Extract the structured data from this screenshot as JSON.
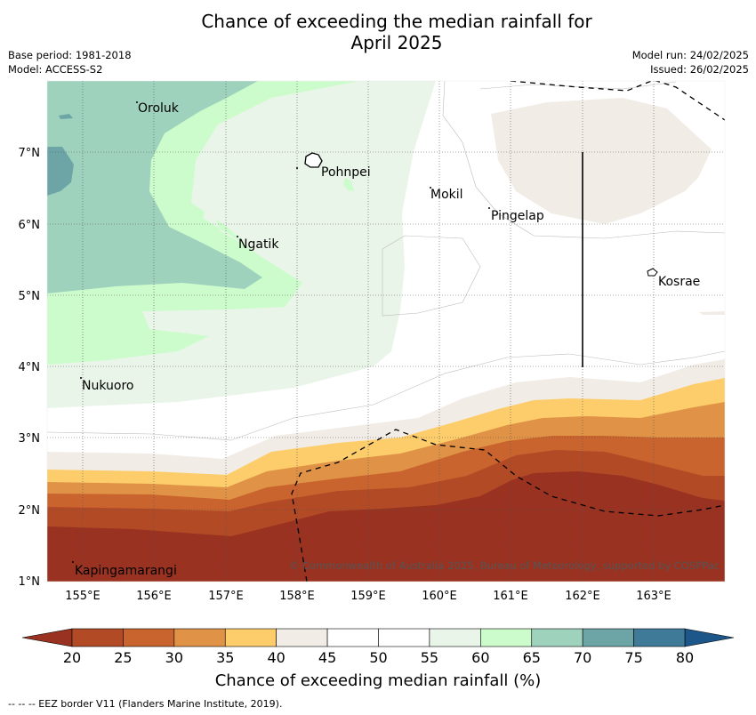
{
  "title_line1": "Chance of exceeding the median rainfall for",
  "title_line2": "April 2025",
  "meta": {
    "base_period": "Base period: 1981-2018",
    "model": "Model: ACCESS-S2",
    "model_run": "Model run: 24/02/2025",
    "issued": "Issued: 26/02/2025"
  },
  "axes": {
    "x_ticks": [
      "155°E",
      "156°E",
      "157°E",
      "158°E",
      "159°E",
      "160°E",
      "161°E",
      "162°E",
      "163°E"
    ],
    "y_ticks": [
      "7°N",
      "6°N",
      "5°N",
      "4°N",
      "3°N",
      "2°N",
      "1°N"
    ]
  },
  "places": [
    {
      "name": "Oroluk"
    },
    {
      "name": "Pohnpei"
    },
    {
      "name": "Mokil"
    },
    {
      "name": "Pingelap"
    },
    {
      "name": "Ngatik"
    },
    {
      "name": "Kosrae"
    },
    {
      "name": "Nukuoro"
    },
    {
      "name": "Kapingamarangi"
    }
  ],
  "copyright": "© Commonwealth of Australia 2025, Bureau of Meteorology, supported by COSPPac",
  "colorbar": {
    "label": "Chance of exceeding median rainfall (%)",
    "ticks": [
      "20",
      "25",
      "30",
      "35",
      "40",
      "45",
      "50",
      "55",
      "60",
      "65",
      "70",
      "75",
      "80"
    ],
    "colors": [
      "#b24a26",
      "#c9642f",
      "#e09346",
      "#fccd6a",
      "#f1ece6",
      "#ffffff",
      "#ffffff",
      "#e9f5e8",
      "#ccfccc",
      "#9fd2bd",
      "#6da5a6",
      "#407a99"
    ],
    "under_color": "#993221",
    "over_color": "#1d5688"
  },
  "footnote": "--  --  -- EEZ border V11 (Flanders Marine Institute, 2019)."
}
